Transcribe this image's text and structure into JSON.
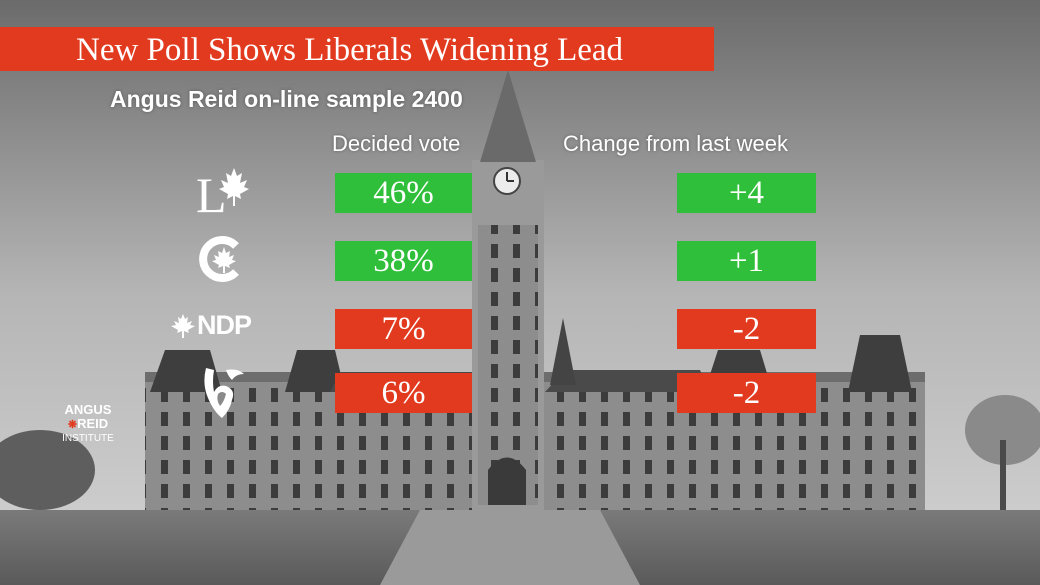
{
  "headline": "New Poll Shows Liberals Widening Lead",
  "subheadline": "Angus Reid on-line sample 2400",
  "colors": {
    "title_bar": "#e23a1f",
    "increase": "#2fbf3a",
    "decrease": "#e23a1f"
  },
  "logos": {
    "row1": "liberal-party-logo",
    "row2": "conservative-party-logo",
    "row3_text": "NDP",
    "row4": "bloc-quebecois-logo"
  },
  "watermark": {
    "line1": "ANGUS",
    "line2": "REID",
    "line3": "INSTITUTE"
  },
  "chart_data": {
    "type": "table",
    "columns": [
      "Decided vote",
      "Change from last week"
    ],
    "rows": [
      {
        "party_logo": "liberal-party-logo",
        "vote": "46%",
        "change": "+4",
        "vote_value": 46,
        "change_value": 4
      },
      {
        "party_logo": "conservative-party-logo",
        "vote": "38%",
        "change": "+1",
        "vote_value": 38,
        "change_value": 1
      },
      {
        "party_logo": "ndp-logo",
        "vote": "7%",
        "change": "-2",
        "vote_value": 7,
        "change_value": -2
      },
      {
        "party_logo": "bloc-quebecois-logo",
        "vote": "6%",
        "change": "-2",
        "vote_value": 6,
        "change_value": -2
      }
    ]
  }
}
